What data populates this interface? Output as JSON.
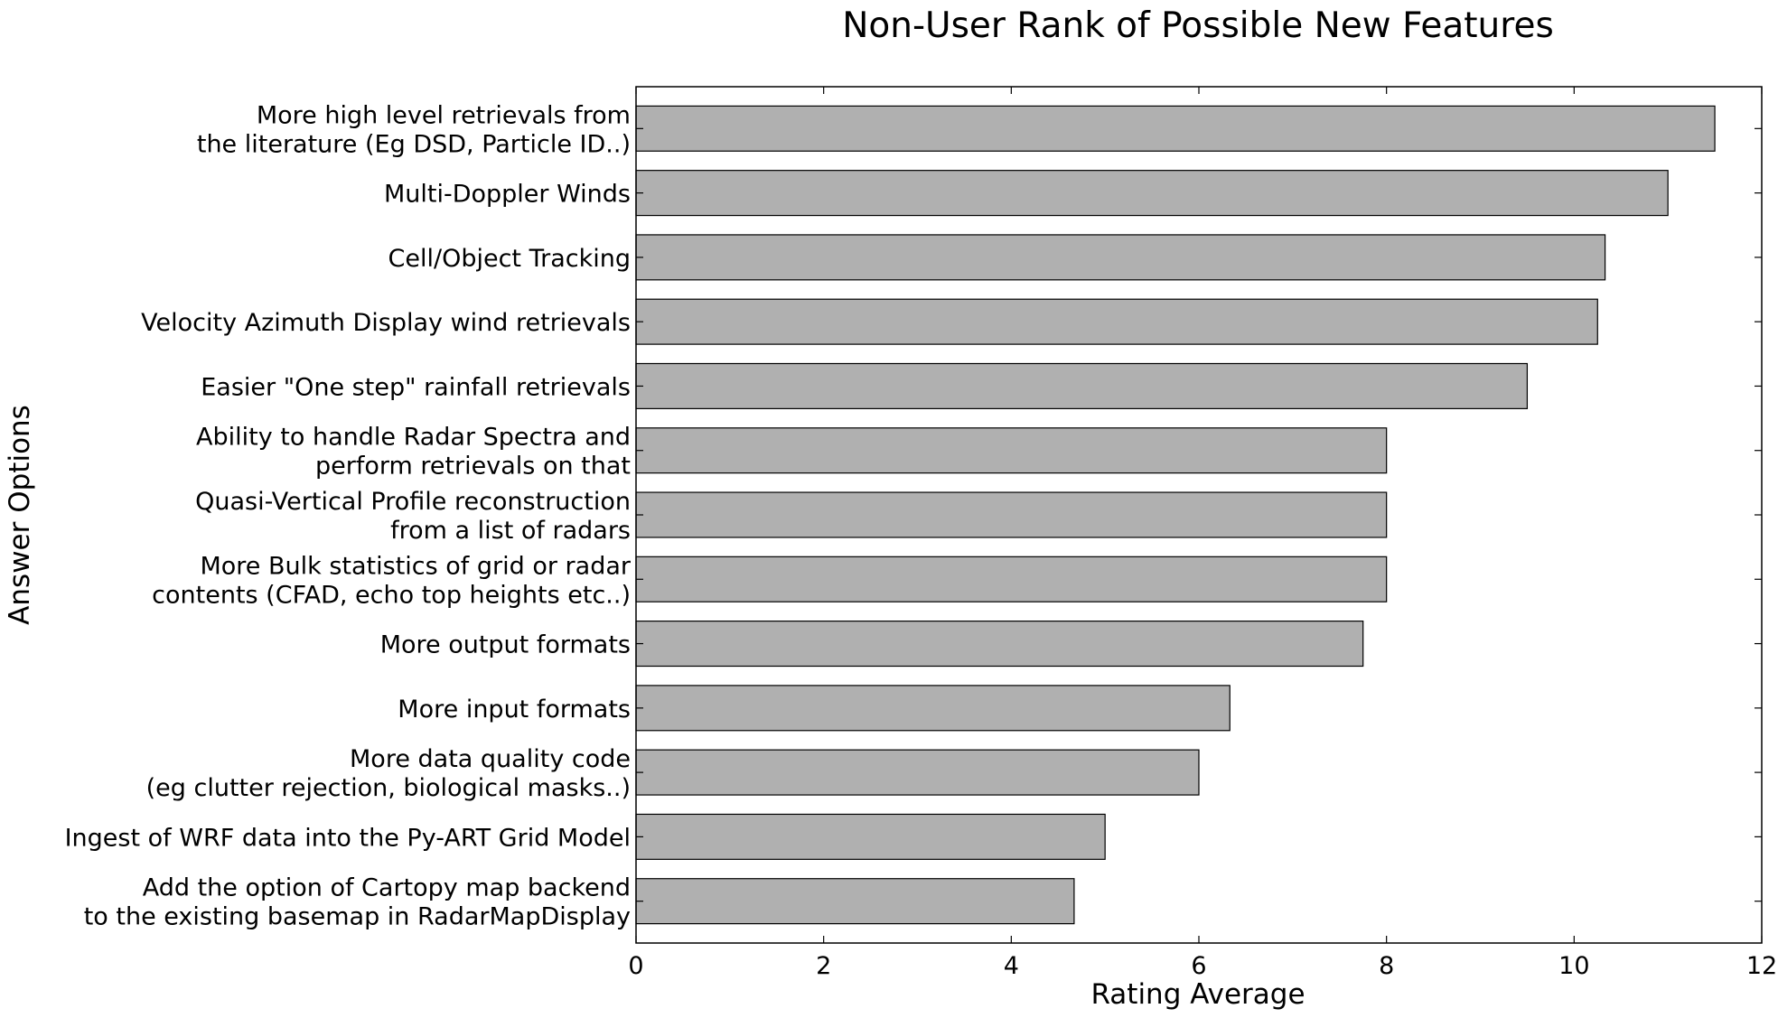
{
  "chart_data": {
    "type": "bar",
    "orientation": "horizontal",
    "title": "Non-User Rank of Possible New Features",
    "xlabel": "Rating Average",
    "ylabel": "Answer Options",
    "xlim": [
      0,
      12
    ],
    "xticks": [
      "0",
      "2",
      "4",
      "6",
      "8",
      "10",
      "12"
    ],
    "grid": false,
    "bar_color": "#b0b0b0",
    "categories": [
      [
        "More high level retrievals from",
        "the literature (Eg DSD, Particle ID..)"
      ],
      [
        "Multi-Doppler Winds"
      ],
      [
        "Cell/Object Tracking"
      ],
      [
        "Velocity Azimuth Display wind retrievals"
      ],
      [
        "Easier \"One step\" rainfall retrievals"
      ],
      [
        "Ability to handle Radar Spectra and",
        "perform retrievals on that"
      ],
      [
        "Quasi-Vertical Profile reconstruction",
        "from a list of radars"
      ],
      [
        "More Bulk statistics of grid or radar",
        "contents (CFAD, echo top heights etc..)"
      ],
      [
        "More output formats"
      ],
      [
        "More input formats"
      ],
      [
        "More data quality code",
        "(eg clutter rejection, biological masks..)"
      ],
      [
        "Ingest of WRF data into the Py-ART Grid Model"
      ],
      [
        "Add the option of Cartopy map backend",
        "to the existing basemap in RadarMapDisplay"
      ]
    ],
    "values": [
      11.5,
      11.0,
      10.33,
      10.25,
      9.5,
      8.0,
      8.0,
      8.0,
      7.75,
      6.33,
      6.0,
      5.0,
      4.67
    ]
  }
}
